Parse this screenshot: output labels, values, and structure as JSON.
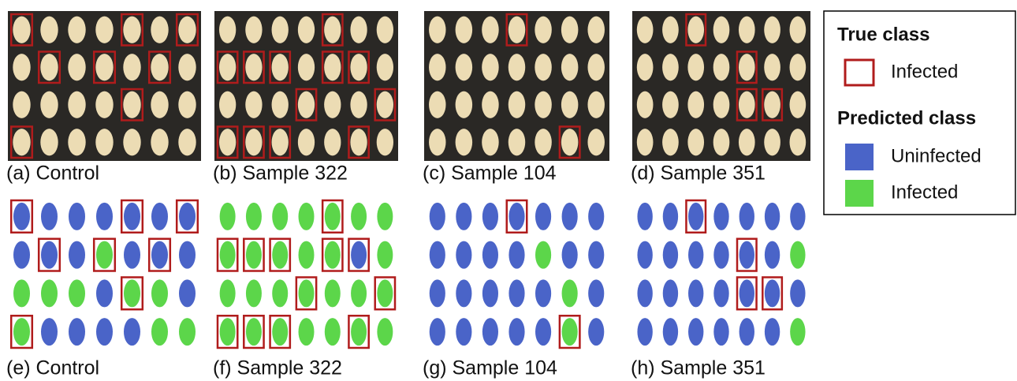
{
  "photo_captions": [
    "(a) Control",
    "(b) Sample 322",
    "(c) Sample 104",
    "(d) Sample 351"
  ],
  "mask_captions": [
    "(e) Control",
    "(f) Sample 322",
    "(g) Sample 104",
    "(h) Sample 351"
  ],
  "legend": {
    "true_title": "True class",
    "true_infected": "Infected",
    "pred_title": "Predicted class",
    "pred_uninfected": "Uninfected",
    "pred_infected": "Infected"
  }
}
